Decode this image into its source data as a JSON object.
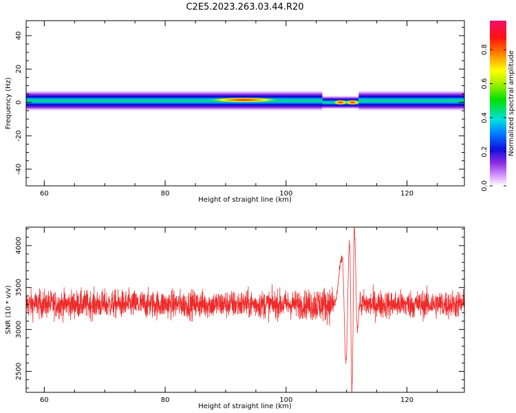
{
  "title": "C2E5.2023.263.03.44.R20",
  "colorbar": {
    "label": "Normalized spectral amplitude",
    "ticks": [
      "0.0",
      "0.2",
      "0.4",
      "0.6",
      "0.8"
    ]
  },
  "chart_data": [
    {
      "type": "heatmap",
      "title": "C2E5.2023.263.03.44.R20",
      "xlabel": "Height of straight line (km)",
      "ylabel": "Frequency (Hz)",
      "xlim": [
        57,
        129.5
      ],
      "ylim": [
        -50,
        49
      ],
      "x_ticks": [
        "60",
        "80",
        "100",
        "120"
      ],
      "y_ticks": [
        "-40",
        "-20",
        "0",
        "20",
        "40"
      ],
      "colorbar_label": "Normalized spectral amplitude",
      "colorbar_range": [
        0.0,
        0.97
      ],
      "band": {
        "description": "spectral energy confined to roughly -4 to +4 Hz along the full height range",
        "segments": [
          {
            "x": [
              57,
              106
            ],
            "freq_center": 1.0,
            "half_width": 3.0
          },
          {
            "x": [
              106,
              112
            ],
            "freq_center": 0.0,
            "half_width": 2.0
          },
          {
            "x": [
              112,
              129.5
            ],
            "freq_center": 1.0,
            "half_width": 3.0
          }
        ],
        "peaks": [
          {
            "x": 93,
            "freq": 1.5,
            "amplitude": 0.95
          },
          {
            "x": 111,
            "freq": 0.0,
            "amplitude": 0.97
          },
          {
            "x": 109,
            "freq": 0.0,
            "amplitude": 0.85
          }
        ]
      }
    },
    {
      "type": "line",
      "xlabel": "Height of straight line (km)",
      "ylabel": "SNR (10 * v/v)",
      "xlim": [
        57,
        129.5
      ],
      "ylim": [
        2250,
        4220
      ],
      "x_ticks": [
        "60",
        "80",
        "100",
        "120"
      ],
      "y_ticks": [
        "2500",
        "3000",
        "3500",
        "4000"
      ],
      "series": [
        {
          "color": "#ee2b2b",
          "description": "dense noisy trace around 3300 with fluctuations of about +/-200, and a large oscillation between 108 and 112 km",
          "baseline": 3300,
          "noise_amplitude": 170,
          "features": [
            {
              "x": 109.3,
              "y": 3850
            },
            {
              "x": 109.9,
              "y": 2600
            },
            {
              "x": 110.5,
              "y": 4050
            },
            {
              "x": 110.9,
              "y": 2280
            },
            {
              "x": 111.3,
              "y": 4200
            },
            {
              "x": 111.8,
              "y": 3000
            }
          ]
        }
      ]
    }
  ]
}
